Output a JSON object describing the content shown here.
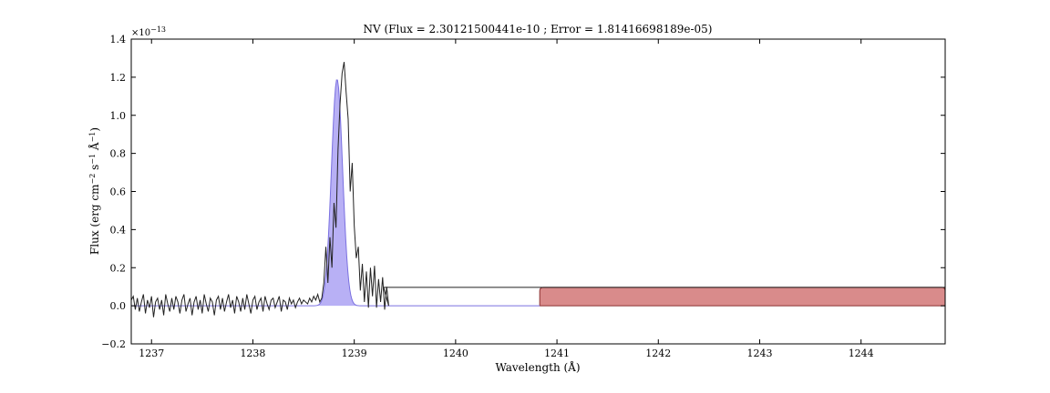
{
  "chart_data": {
    "type": "line",
    "title": "NV (Flux = 2.30121500441e-10 ; Error = 1.81416698189e-05)",
    "xlabel": "Wavelength (Å)",
    "ylabel_parts": [
      "Flux (erg cm",
      "−2",
      " s",
      "−1",
      " Å",
      "−1",
      ")"
    ],
    "y_scale_exponent": "×10",
    "y_scale_power": "−13",
    "xlim": [
      1236.8,
      1244.83
    ],
    "ylim": [
      -0.2,
      1.4
    ],
    "x_ticks": [
      1237,
      1238,
      1239,
      1240,
      1241,
      1242,
      1243,
      1244
    ],
    "x_tick_labels": [
      "1237",
      "1238",
      "1239",
      "1240",
      "1241",
      "1242",
      "1243",
      "1244"
    ],
    "y_ticks": [
      -0.2,
      0.0,
      0.2,
      0.4,
      0.6,
      0.8,
      1.0,
      1.2,
      1.4
    ],
    "y_tick_labels": [
      "−0.2",
      "0.0",
      "0.2",
      "0.4",
      "0.6",
      "0.8",
      "1.0",
      "1.2",
      "1.4"
    ],
    "grid": false,
    "colors": {
      "observed": "#222222",
      "fit_fill": "#b8b0f5",
      "fit_line": "#7a70e0",
      "band_fill": "#d98b8b",
      "band_edge": "#8a3030"
    },
    "observed_spectrum": {
      "x_start": 1236.8,
      "x_step": 0.02,
      "y": [
        0.03,
        0.05,
        -0.02,
        0.04,
        -0.03,
        0.02,
        0.06,
        -0.04,
        0.03,
        -0.01,
        0.05,
        -0.06,
        0.02,
        0.04,
        -0.02,
        0.03,
        -0.05,
        0.06,
        0.01,
        -0.03,
        0.04,
        -0.02,
        0.05,
        0.02,
        -0.04,
        0.03,
        0.06,
        -0.03,
        0.01,
        0.04,
        -0.05,
        0.02,
        0.05,
        -0.02,
        0.03,
        -0.04,
        0.06,
        0.01,
        -0.03,
        0.04,
        0.02,
        -0.05,
        0.03,
        0.05,
        -0.02,
        0.04,
        -0.03,
        0.02,
        0.06,
        -0.01,
        0.03,
        -0.04,
        0.05,
        0.02,
        -0.03,
        0.04,
        -0.02,
        0.06,
        0.01,
        -0.04,
        0.03,
        0.05,
        -0.02,
        0.02,
        0.04,
        -0.03,
        0.05,
        0.01,
        -0.02,
        0.03,
        0.04,
        -0.01,
        0.02,
        0.05,
        -0.03,
        0.03,
        0.02,
        -0.02,
        0.04,
        0.01,
        0.03,
        -0.01,
        0.02,
        0.04,
        0.01,
        0.03,
        0.02,
        0.01,
        0.04,
        0.02,
        0.05,
        0.03,
        0.06,
        0.02,
        0.04,
        0.12,
        0.31,
        0.12,
        0.36,
        0.2,
        0.54,
        0.41,
        0.82,
        1.06,
        1.22,
        1.28,
        1.12,
        0.98,
        0.6,
        0.75,
        0.42,
        0.25,
        0.31,
        0.08,
        0.22,
        0.02,
        0.18,
        -0.01,
        0.2,
        0.05,
        0.21,
        -0.01,
        0.14,
        0.02,
        0.15,
        -0.02,
        0.1,
        0.0
      ]
    },
    "flat_segment": {
      "x": [
        1239.29,
        1244.83
      ],
      "y": 0.097
    },
    "fitted_gaussian": {
      "amplitude": 1.19,
      "center": 1238.83,
      "sigma": 0.055
    },
    "band": {
      "x": [
        1240.83,
        1244.83
      ],
      "y_top": 0.097,
      "y_bottom": 0.0
    }
  }
}
